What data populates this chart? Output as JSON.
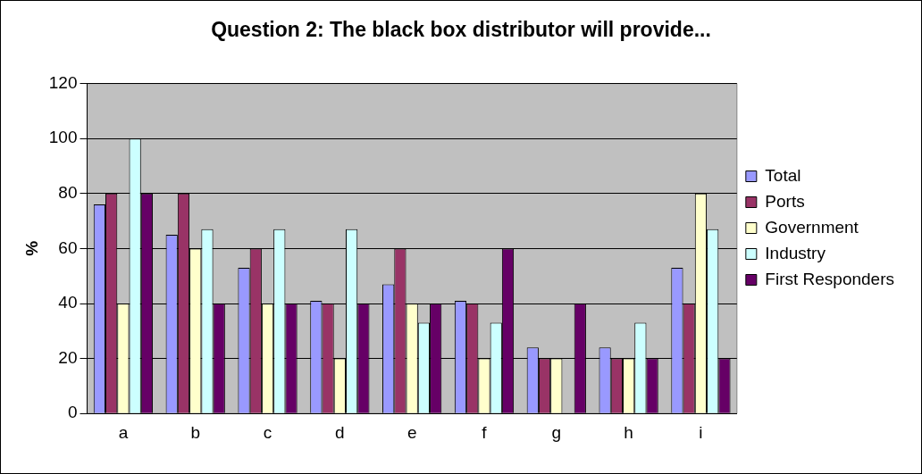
{
  "chart_data": {
    "type": "bar",
    "title": "Question 2: The black box distributor will provide...",
    "ylabel": "%",
    "categories": [
      "a",
      "b",
      "c",
      "d",
      "e",
      "f",
      "g",
      "h",
      "i"
    ],
    "series": [
      {
        "name": "Total",
        "color": "#9999ff",
        "values": [
          76,
          65,
          53,
          41,
          47,
          41,
          24,
          24,
          53
        ]
      },
      {
        "name": "Ports",
        "color": "#993366",
        "values": [
          80,
          80,
          60,
          40,
          60,
          40,
          20,
          20,
          40
        ]
      },
      {
        "name": "Government",
        "color": "#ffffcc",
        "values": [
          40,
          60,
          40,
          20,
          40,
          20,
          20,
          20,
          80
        ]
      },
      {
        "name": "Industry",
        "color": "#ccffff",
        "values": [
          100,
          67,
          67,
          67,
          33,
          33,
          0,
          33,
          67
        ]
      },
      {
        "name": "First Responders",
        "color": "#660066",
        "values": [
          80,
          40,
          40,
          40,
          40,
          60,
          40,
          20,
          20
        ]
      }
    ],
    "ylim": [
      0,
      120
    ],
    "yticks": [
      0,
      20,
      40,
      60,
      80,
      100,
      120
    ],
    "grid": "y",
    "legend": "right"
  }
}
